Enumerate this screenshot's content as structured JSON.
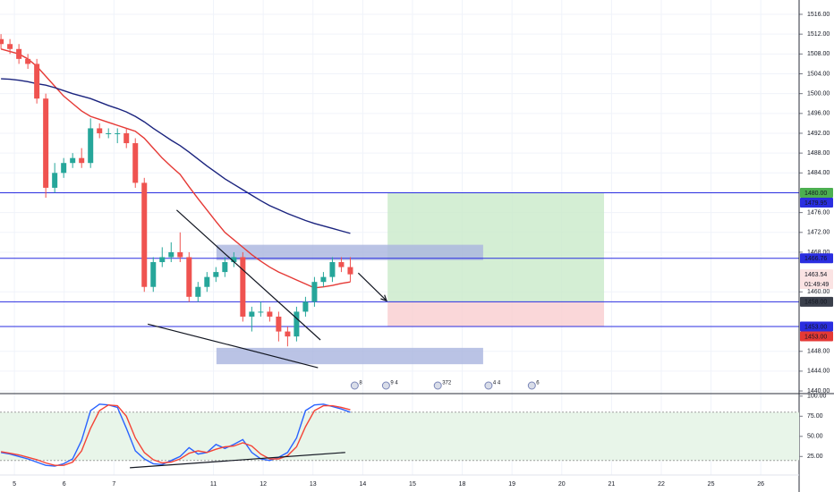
{
  "chart_data": {
    "type": "candlestick",
    "x": [
      -0.27,
      -0.09,
      0.09,
      0.27,
      0.45,
      0.63,
      0.81,
      0.99,
      1.17,
      1.35,
      1.53,
      1.71,
      1.89,
      2.07,
      2.25,
      2.43,
      2.61,
      2.79,
      2.97,
      3.15,
      3.33,
      3.51,
      3.69,
      3.87,
      4.05,
      4.23,
      4.41,
      4.59,
      4.77,
      4.95,
      5.13,
      5.31,
      5.49,
      5.67,
      5.85,
      6.03,
      6.21,
      6.39,
      6.57,
      6.75
    ],
    "open": [
      1511,
      1510,
      1509,
      1507,
      1506,
      1499,
      1481,
      1484,
      1486,
      1487,
      1486,
      1493,
      1492,
      1492,
      1492,
      1490,
      1482,
      1461,
      1466,
      1467,
      1468,
      1467,
      1459,
      1461,
      1463,
      1464,
      1466,
      1467,
      1455,
      1456,
      1456,
      1455,
      1452,
      1451,
      1456,
      1458,
      1462,
      1463,
      1466,
      1465
    ],
    "high": [
      1512,
      1511,
      1510,
      1508,
      1507,
      1500,
      1486,
      1487,
      1488,
      1489,
      1495,
      1494,
      1493,
      1493,
      1493,
      1491,
      1483,
      1467,
      1469,
      1470,
      1472,
      1468,
      1462,
      1464,
      1465,
      1467,
      1468,
      1468,
      1457,
      1458,
      1457,
      1456,
      1453,
      1457,
      1459,
      1463,
      1464,
      1467,
      1467,
      1467
    ],
    "low": [
      1509,
      1508,
      1506,
      1505,
      1498,
      1479,
      1480,
      1483,
      1485,
      1485,
      1485,
      1491,
      1491,
      1490,
      1489,
      1481,
      1460,
      1460,
      1465,
      1466,
      1466,
      1458,
      1458,
      1460,
      1462,
      1463,
      1465,
      1454,
      1452,
      1455,
      1454,
      1450,
      1449,
      1450,
      1455,
      1457,
      1461,
      1462,
      1464,
      1462
    ],
    "close": [
      1510,
      1509,
      1507,
      1506,
      1499,
      1481,
      1484,
      1486,
      1487,
      1486,
      1493,
      1492,
      1492,
      1492,
      1490,
      1482,
      1461,
      1466,
      1467,
      1468,
      1467,
      1459,
      1461,
      1463,
      1464,
      1466,
      1467,
      1455,
      1456,
      1456,
      1455,
      1452,
      1451,
      1456,
      1458,
      1462,
      1463,
      1466,
      1465,
      1463.54
    ],
    "up_color": "#26a69a",
    "down_color": "#ef5350",
    "xlim": [
      -0.29,
      15.77
    ],
    "xticks": [
      {
        "value": 0,
        "label": "5"
      },
      {
        "value": 1,
        "label": "6"
      },
      {
        "value": 2,
        "label": "7"
      },
      {
        "value": 4,
        "label": "11"
      },
      {
        "value": 5,
        "label": "12"
      },
      {
        "value": 6,
        "label": "13"
      },
      {
        "value": 7,
        "label": "14"
      },
      {
        "value": 8,
        "label": "15"
      },
      {
        "value": 9,
        "label": "18"
      },
      {
        "value": 10,
        "label": "19"
      },
      {
        "value": 11,
        "label": "20"
      },
      {
        "value": 12,
        "label": "21"
      },
      {
        "value": 13,
        "label": "22"
      },
      {
        "value": 14,
        "label": "25"
      },
      {
        "value": 15,
        "label": "26"
      }
    ],
    "ylim": [
      1439.47,
      1518.89
    ],
    "yticks": [
      {
        "value": 1516,
        "label": "1516.00"
      },
      {
        "value": 1512,
        "label": "1512.00"
      },
      {
        "value": 1508,
        "label": "1508.00"
      },
      {
        "value": 1504,
        "label": "1504.00"
      },
      {
        "value": 1500,
        "label": "1500.00"
      },
      {
        "value": 1496,
        "label": "1496.00"
      },
      {
        "value": 1492,
        "label": "1492.00"
      },
      {
        "value": 1488,
        "label": "1488.00"
      },
      {
        "value": 1484,
        "label": "1484.00"
      },
      {
        "value": 1476,
        "label": "1476.00"
      },
      {
        "value": 1472,
        "label": "1472.00"
      },
      {
        "value": 1468,
        "label": "1468.00"
      },
      {
        "value": 1460,
        "label": "1460.00"
      },
      {
        "value": 1448,
        "label": "1448.00"
      },
      {
        "value": 1444,
        "label": "1444.00"
      },
      {
        "value": 1440,
        "label": "1440.00"
      }
    ],
    "grid": true,
    "lines": [
      {
        "color": "#e53935",
        "values": [
          1509,
          1508.5,
          1508,
          1507,
          1505.5,
          1503.5,
          1501.5,
          1499.5,
          1498,
          1496.5,
          1495.4,
          1494.8,
          1494.2,
          1493.6,
          1493,
          1492.4,
          1491,
          1489,
          1487,
          1485.3,
          1483.7,
          1481.2,
          1478.8,
          1476.5,
          1474.2,
          1472,
          1470.5,
          1469,
          1467.5,
          1466.2,
          1465,
          1464,
          1463.2,
          1462.4,
          1461.6,
          1460.8,
          1461,
          1461.3,
          1461.7,
          1462
        ]
      },
      {
        "color": "#1a237e",
        "values": [
          1503,
          1502.9,
          1502.7,
          1502.4,
          1502,
          1501.7,
          1501.2,
          1500.6,
          1500,
          1499.5,
          1499,
          1498.3,
          1497.6,
          1497,
          1496.3,
          1495.4,
          1494.3,
          1493,
          1491.8,
          1490.6,
          1489.5,
          1488.2,
          1486.8,
          1485.4,
          1484.1,
          1482.8,
          1481.7,
          1480.6,
          1479.5,
          1478.4,
          1477.4,
          1476.6,
          1475.8,
          1475.1,
          1474.4,
          1473.8,
          1473.3,
          1472.8,
          1472.3,
          1471.8
        ]
      }
    ],
    "hlines": {
      "color": "#2a2ee0",
      "values": [
        1480,
        1466.76,
        1458,
        1453
      ]
    },
    "zones": [
      {
        "x": [
          7.5,
          11.85
        ],
        "y": [
          1458,
          1480
        ],
        "color": "#c9eac9"
      },
      {
        "x": [
          7.5,
          11.85
        ],
        "y": [
          1453,
          1458
        ],
        "color": "#f9cdcf"
      },
      {
        "x": [
          4.06,
          9.42
        ],
        "y": [
          1466.4,
          1469.5
        ],
        "color": "#a9b4de"
      },
      {
        "x": [
          4.06,
          9.42
        ],
        "y": [
          1445.4,
          1448.7
        ],
        "color": "#a9b4de"
      }
    ],
    "trendlines": [
      {
        "x": [
          3.26,
          6.15
        ],
        "y": [
          1476.5,
          1450.3
        ]
      },
      {
        "x": [
          2.68,
          6.1
        ],
        "y": [
          1453.5,
          1444.7
        ]
      }
    ],
    "arrow": {
      "x": [
        6.91,
        7.48
      ],
      "y": [
        1463.8,
        1458.2
      ]
    },
    "price_tags": [
      {
        "value": 1480,
        "label": "1480.00",
        "bg": "#4caf50",
        "fg": "#ffffff"
      },
      {
        "value": 1479.95,
        "label": "1479.95",
        "bg": "#2a2ee0",
        "fg": "#ffffff"
      },
      {
        "value": 1466.76,
        "label": "1466.76",
        "bg": "#2a2ee0",
        "fg": "#ffffff"
      },
      {
        "value": 1463.54,
        "label": "1463.54",
        "bg": "#fbe3e3",
        "fg": "#131722",
        "countdown": "01:49:49"
      },
      {
        "value": 1458,
        "label": "1458.00",
        "bg": "#3a3f4b",
        "fg": "#ffffff"
      },
      {
        "value": 1453,
        "label": "1453.00",
        "bg": "#2a2ee0",
        "fg": "#ffffff"
      },
      {
        "value": 1453,
        "label": "1453.00",
        "bg": "#e53935",
        "fg": "#ffffff"
      }
    ],
    "events": [
      {
        "x": 6.91,
        "label": "8"
      },
      {
        "x": 7.54,
        "label": "9 4"
      },
      {
        "x": 8.58,
        "label": "372"
      },
      {
        "x": 9.6,
        "label": "4 4"
      },
      {
        "x": 10.47,
        "label": "6"
      }
    ],
    "oscillator": {
      "ylim": [
        2,
        102
      ],
      "yticks": [
        {
          "value": 100,
          "label": "100.00"
        },
        {
          "value": 75,
          "label": "75.00"
        },
        {
          "value": 50,
          "label": "50.00"
        },
        {
          "value": 25,
          "label": "25.00"
        }
      ],
      "band": [
        20,
        80
      ],
      "k": {
        "color": "#2962ff",
        "values": [
          30,
          28,
          25,
          22,
          18,
          14,
          13,
          16,
          22,
          45,
          82,
          90,
          89,
          86,
          60,
          32,
          22,
          16,
          15,
          20,
          25,
          36,
          28,
          30,
          40,
          35,
          40,
          46,
          30,
          22,
          20,
          24,
          30,
          48,
          82,
          89,
          90,
          87,
          84,
          80
        ]
      },
      "d": {
        "color": "#f44336",
        "values": [
          31,
          29,
          27,
          24,
          21,
          17,
          14,
          14,
          18,
          32,
          60,
          82,
          89,
          88,
          75,
          48,
          30,
          21,
          17,
          18,
          22,
          29,
          32,
          30,
          34,
          37,
          38,
          42,
          38,
          28,
          22,
          22,
          26,
          37,
          62,
          82,
          88,
          88,
          86,
          83
        ]
      },
      "trendline": {
        "x": [
          2.32,
          6.65
        ],
        "y": [
          11,
          30
        ]
      }
    }
  }
}
